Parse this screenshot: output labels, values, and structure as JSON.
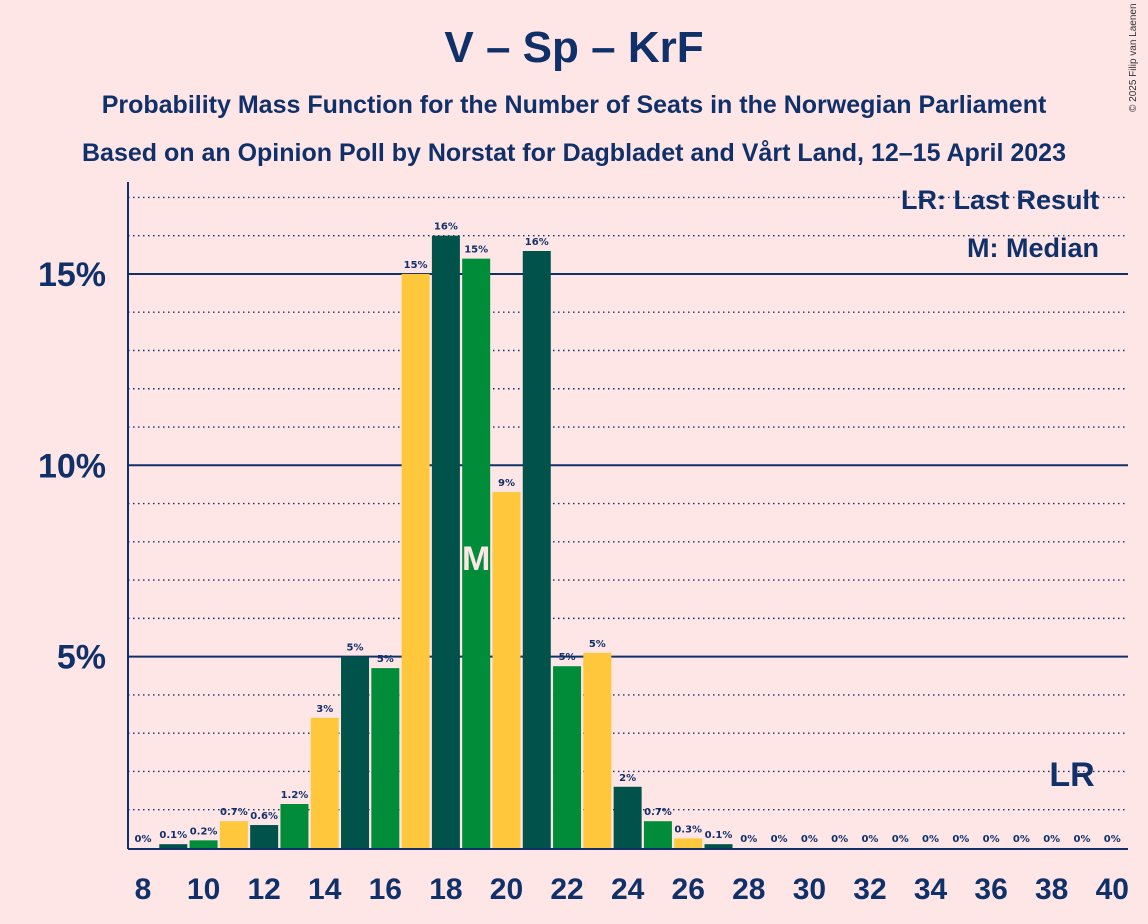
{
  "title": "V – Sp – KrF",
  "subtitle_1": "Probability Mass Function for the Number of Seats in the Norwegian Parliament",
  "subtitle_2": "Based on an Opinion Poll by Norstat for Dagbladet and Vårt Land, 12–15 April 2023",
  "copyright": "© 2025 Filip van Laenen",
  "legend": {
    "last_result": "LR: Last Result",
    "median": "M: Median"
  },
  "colors": {
    "background": "#FFE6E6",
    "text": "#10306A",
    "dark_green": "#00524A",
    "green": "#008C39",
    "yellow": "#FFC83C"
  },
  "chart_data": {
    "type": "bar",
    "title": "V – Sp – KrF",
    "xlabel": "",
    "ylabel": "",
    "x": [
      8,
      9,
      10,
      11,
      12,
      13,
      14,
      15,
      16,
      17,
      18,
      19,
      20,
      21,
      22,
      23,
      24,
      25,
      26,
      27,
      28,
      29,
      30,
      31,
      32,
      33,
      34,
      35,
      36,
      37,
      38,
      39,
      40
    ],
    "values": [
      0,
      0.1,
      0.2,
      0.7,
      0.6,
      1.15,
      3.4,
      5.0,
      4.7,
      15.0,
      16.0,
      15.4,
      9.3,
      15.6,
      4.75,
      5.1,
      1.6,
      0.7,
      0.25,
      0.1,
      0,
      0,
      0,
      0,
      0,
      0,
      0,
      0,
      0,
      0,
      0,
      0,
      0
    ],
    "labels": [
      "0%",
      "0.1%",
      "0.2%",
      "0.7%",
      "0.6%",
      "1.2%",
      "3%",
      "5%",
      "5%",
      "15%",
      "16%",
      "15%",
      "9%",
      "16%",
      "5%",
      "5%",
      "2%",
      "0.7%",
      "0.3%",
      "0.1%",
      "0%",
      "0%",
      "0%",
      "0%",
      "0%",
      "0%",
      "0%",
      "0%",
      "0%",
      "0%",
      "0%",
      "0%",
      "0%"
    ],
    "bar_colors": [
      "yellow",
      "dark_green",
      "green",
      "yellow",
      "dark_green",
      "green",
      "yellow",
      "dark_green",
      "green",
      "yellow",
      "dark_green",
      "green",
      "yellow",
      "dark_green",
      "green",
      "yellow",
      "dark_green",
      "green",
      "yellow",
      "dark_green",
      "green",
      "yellow",
      "dark_green",
      "green",
      "yellow",
      "dark_green",
      "green",
      "yellow",
      "dark_green",
      "green",
      "yellow",
      "dark_green",
      "green"
    ],
    "xticks": [
      8,
      10,
      12,
      14,
      16,
      18,
      20,
      22,
      24,
      26,
      28,
      30,
      32,
      34,
      36,
      38,
      40
    ],
    "yticks": [
      {
        "value": 5,
        "label": "5%"
      },
      {
        "value": 10,
        "label": "10%"
      },
      {
        "value": 15,
        "label": "15%"
      }
    ],
    "ylim": [
      0,
      17.4
    ],
    "minor_grid_step": 1,
    "median_seat": 19,
    "median_mark": "M",
    "last_result_seat": 39,
    "last_result_mark": "LR",
    "legend_position": "top-right",
    "grid": true
  }
}
